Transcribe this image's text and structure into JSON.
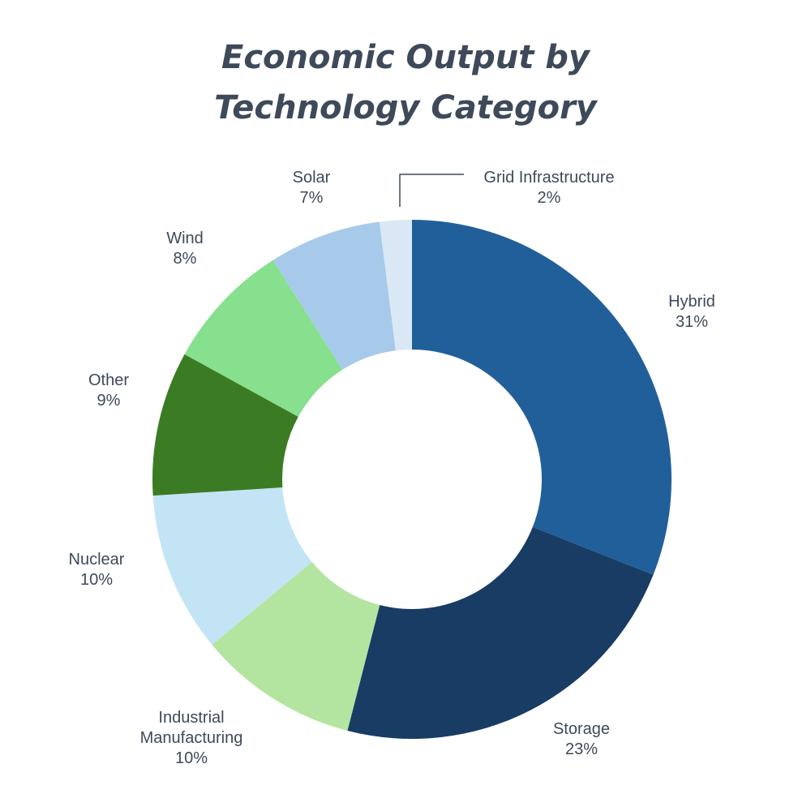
{
  "chart_data": {
    "type": "pie",
    "style": "donut",
    "title": [
      "Economic Output by",
      "Technology Category"
    ],
    "unit": "%",
    "slices": [
      {
        "label": [
          "Hybrid"
        ],
        "value": 31,
        "display": "31%",
        "color": "#215f9a"
      },
      {
        "label": [
          "Storage"
        ],
        "value": 23,
        "display": "23%",
        "color": "#183c63"
      },
      {
        "label": [
          "Industrial",
          "Manufacturing"
        ],
        "value": 10,
        "display": "10%",
        "color": "#b3e5a0"
      },
      {
        "label": [
          "Nuclear"
        ],
        "value": 10,
        "display": "10%",
        "color": "#c3e4f4"
      },
      {
        "label": [
          "Other"
        ],
        "value": 9,
        "display": "9%",
        "color": "#3b7b23"
      },
      {
        "label": [
          "Wind"
        ],
        "value": 8,
        "display": "8%",
        "color": "#86e08d"
      },
      {
        "label": [
          "Solar"
        ],
        "value": 7,
        "display": "7%",
        "color": "#a7caea"
      },
      {
        "label": [
          "Grid Infrastructure"
        ],
        "value": 2,
        "display": "2%",
        "color": "#dae8f5"
      }
    ],
    "legend": "none"
  }
}
